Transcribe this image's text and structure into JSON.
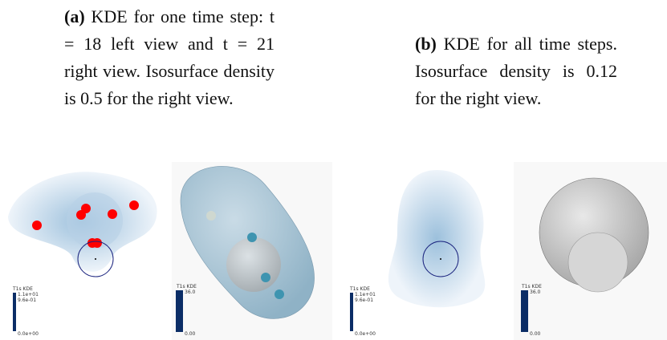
{
  "captions": [
    {
      "label": "(a)",
      "text": "KDE for one time step: t = 18 left view and t = 21 right view. Isosurface density is 0.5 for the right view."
    },
    {
      "label": "(b)",
      "text": "KDE for all time steps. Isosurface density is 0.12 for the right view."
    }
  ],
  "panels": [
    {
      "legend_title": "T1s KDE",
      "max": "1.1e+01",
      "mid": "9.6e-01",
      "min": "0.0e+00"
    },
    {
      "legend_title": "T1s KDE",
      "max": "36.0",
      "min": "0.00"
    },
    {
      "legend_title": "T1s KDE",
      "max": "1.1e+01",
      "mid": "9.6e-01",
      "min": "0.0e+00"
    },
    {
      "legend_title": "T1s KDE",
      "max": "36.0",
      "min": "0.00"
    }
  ]
}
